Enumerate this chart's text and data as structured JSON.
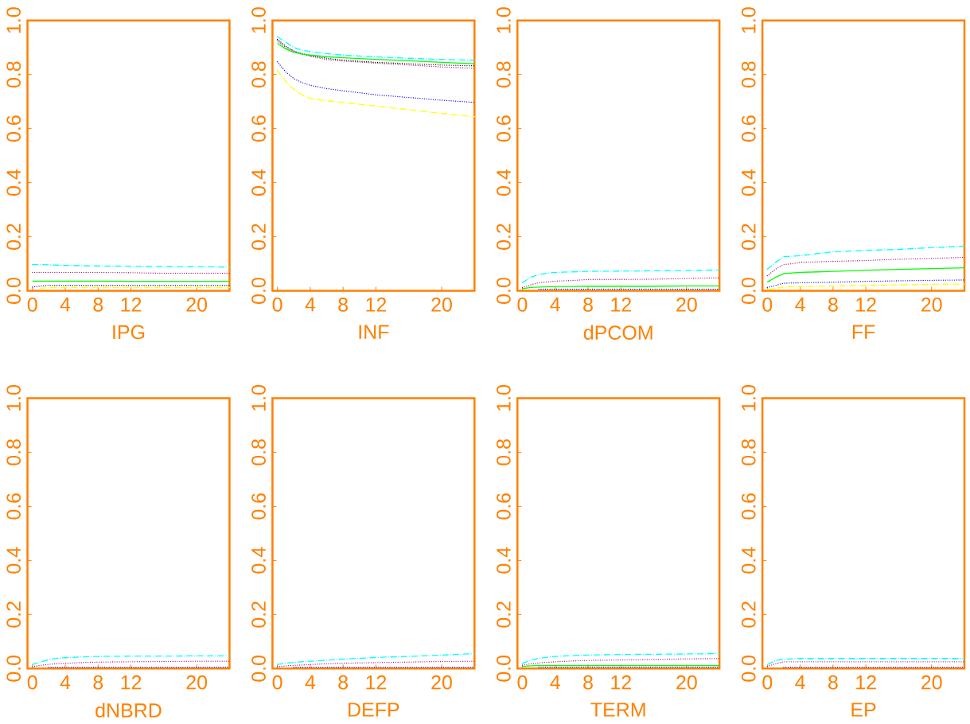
{
  "chart_data": [
    {
      "type": "line",
      "xlabel": "IPG",
      "x": [
        0,
        1,
        2,
        3,
        4,
        6,
        8,
        12,
        16,
        20,
        24
      ],
      "xlim": [
        -0.6,
        24
      ],
      "ylim": [
        0,
        1
      ],
      "xticks": [
        0,
        4,
        8,
        12,
        20
      ],
      "yticks": [
        {
          "value": 0,
          "label": "0.0"
        },
        {
          "value": 0.2,
          "label": "0.2"
        },
        {
          "value": 0.4,
          "label": "0.4"
        },
        {
          "value": 0.6,
          "label": "0.6"
        },
        {
          "value": 0.8,
          "label": "0.8"
        },
        {
          "value": 1,
          "label": "1.0"
        }
      ],
      "series": [
        {
          "color": "#00ffff",
          "line_style": "dashdot",
          "values": [
            0.097,
            0.097,
            0.096,
            0.095,
            0.094,
            0.093,
            0.092,
            0.091,
            0.09,
            0.089,
            0.088
          ]
        },
        {
          "color": "#b0107f",
          "line_style": "dotted",
          "values": [
            0.068,
            0.068,
            0.068,
            0.068,
            0.068,
            0.068,
            0.068,
            0.067,
            0.065,
            0.065,
            0.065
          ]
        },
        {
          "color": "#00ff00",
          "line_style": "solid",
          "values": [
            0.036,
            0.036,
            0.036,
            0.036,
            0.036,
            0.036,
            0.036,
            0.035,
            0.035,
            0.035,
            0.035
          ]
        },
        {
          "color": "#0000ff",
          "line_style": "dotted",
          "values": [
            0.014,
            0.018,
            0.02,
            0.02,
            0.02,
            0.02,
            0.02,
            0.02,
            0.02,
            0.02,
            0.02
          ]
        },
        {
          "color": "#ffff00",
          "line_style": "dashdot",
          "values": [
            null,
            0.01,
            0.011,
            0.012,
            0.012,
            0.012,
            0.012,
            0.012,
            0.012,
            0.012,
            0.012
          ]
        }
      ]
    },
    {
      "type": "line",
      "xlabel": "INF",
      "x": [
        0,
        1,
        2,
        3,
        4,
        6,
        8,
        12,
        16,
        20,
        24
      ],
      "xlim": [
        -0.6,
        24
      ],
      "ylim": [
        0,
        1
      ],
      "xticks": [
        0,
        4,
        8,
        12,
        20
      ],
      "yticks": [
        {
          "value": 0,
          "label": "0.0"
        },
        {
          "value": 0.2,
          "label": "0.2"
        },
        {
          "value": 0.4,
          "label": "0.4"
        },
        {
          "value": 0.6,
          "label": "0.6"
        },
        {
          "value": 0.8,
          "label": "0.8"
        },
        {
          "value": 1,
          "label": "1.0"
        }
      ],
      "series": [
        {
          "color": "#00ffff",
          "line_style": "dashdot",
          "values": [
            0.94,
            0.92,
            0.9,
            0.89,
            0.885,
            0.877,
            0.872,
            0.865,
            0.86,
            0.856,
            0.853
          ]
        },
        {
          "color": "#b0107f",
          "line_style": "dotted",
          "values": [
            0.925,
            0.9,
            0.885,
            0.875,
            0.868,
            0.855,
            0.85,
            0.842,
            0.835,
            0.828,
            0.823
          ]
        },
        {
          "color": "#000000",
          "line_style": "dotted",
          "values": [
            0.93,
            0.905,
            0.887,
            0.877,
            0.87,
            0.86,
            0.853,
            0.845,
            0.84,
            0.835,
            0.832
          ]
        },
        {
          "color": "#00ff00",
          "line_style": "solid",
          "values": [
            0.915,
            0.895,
            0.882,
            0.876,
            0.872,
            0.866,
            0.862,
            0.856,
            0.851,
            0.845,
            0.84
          ]
        },
        {
          "color": "#0000ff",
          "line_style": "dotted",
          "values": [
            0.847,
            0.81,
            0.785,
            0.77,
            0.76,
            0.748,
            0.74,
            0.725,
            0.715,
            0.705,
            0.697
          ]
        },
        {
          "color": "#ffff00",
          "line_style": "dashdot",
          "values": [
            0.815,
            0.775,
            0.745,
            0.725,
            0.712,
            0.703,
            0.697,
            0.683,
            0.67,
            0.656,
            0.644
          ]
        }
      ]
    },
    {
      "type": "line",
      "xlabel": "dPCOM",
      "x": [
        0,
        1,
        2,
        3,
        4,
        6,
        8,
        12,
        16,
        20,
        24
      ],
      "xlim": [
        -0.6,
        24
      ],
      "ylim": [
        0,
        1
      ],
      "xticks": [
        0,
        4,
        8,
        12,
        20
      ],
      "yticks": [
        {
          "value": 0,
          "label": "0.0"
        },
        {
          "value": 0.2,
          "label": "0.2"
        },
        {
          "value": 0.4,
          "label": "0.4"
        },
        {
          "value": 0.6,
          "label": "0.6"
        },
        {
          "value": 0.8,
          "label": "0.8"
        },
        {
          "value": 1,
          "label": "1.0"
        }
      ],
      "series": [
        {
          "color": "#00ffff",
          "line_style": "dashdot",
          "values": [
            0.03,
            0.05,
            0.06,
            0.065,
            0.068,
            0.07,
            0.072,
            0.073,
            0.074,
            0.075,
            0.077
          ]
        },
        {
          "color": "#b0107f",
          "line_style": "dotted",
          "values": [
            0.012,
            0.022,
            0.03,
            0.033,
            0.036,
            0.038,
            0.042,
            0.042,
            0.043,
            0.046,
            0.048
          ]
        },
        {
          "color": "#00ff00",
          "line_style": "solid",
          "values": [
            0.008,
            0.012,
            0.014,
            0.015,
            0.016,
            0.016,
            0.017,
            0.017,
            0.017,
            0.018,
            0.018
          ]
        },
        {
          "color": "#0000ff",
          "line_style": "dotted",
          "values": [
            null,
            null,
            0.006,
            0.006,
            0.006,
            0.006,
            0.006,
            0.006,
            0.006,
            0.006,
            0.006
          ]
        }
      ]
    },
    {
      "type": "line",
      "xlabel": "FF",
      "x": [
        0,
        1,
        2,
        3,
        4,
        6,
        8,
        12,
        16,
        20,
        24
      ],
      "xlim": [
        -0.6,
        24
      ],
      "ylim": [
        0,
        1
      ],
      "xticks": [
        0,
        4,
        8,
        12,
        20
      ],
      "yticks": [
        {
          "value": 0,
          "label": "0.0"
        },
        {
          "value": 0.2,
          "label": "0.2"
        },
        {
          "value": 0.4,
          "label": "0.4"
        },
        {
          "value": 0.6,
          "label": "0.6"
        },
        {
          "value": 0.8,
          "label": "0.8"
        },
        {
          "value": 1,
          "label": "1.0"
        }
      ],
      "series": [
        {
          "color": "#00ffff",
          "line_style": "dashdot",
          "values": [
            0.08,
            0.105,
            0.126,
            0.128,
            0.13,
            0.137,
            0.144,
            0.15,
            0.153,
            0.16,
            0.165
          ]
        },
        {
          "color": "#b0107f",
          "line_style": "dotted",
          "values": [
            0.056,
            0.08,
            0.097,
            0.1,
            0.106,
            0.107,
            0.109,
            0.112,
            0.117,
            0.12,
            0.124
          ]
        },
        {
          "color": "#00ff00",
          "line_style": "solid",
          "values": [
            0.032,
            0.05,
            0.064,
            0.066,
            0.068,
            0.07,
            0.072,
            0.076,
            0.079,
            0.082,
            0.085
          ]
        },
        {
          "color": "#0000ff",
          "line_style": "dotted",
          "values": [
            0.012,
            0.02,
            0.028,
            0.029,
            0.03,
            0.031,
            0.032,
            0.035,
            0.037,
            0.039,
            0.04
          ]
        },
        {
          "color": "#ffff00",
          "line_style": "dashdot",
          "values": [
            0.005,
            0.009,
            0.014,
            0.015,
            0.016,
            0.017,
            0.018,
            0.02,
            0.022,
            0.024,
            0.025
          ]
        }
      ]
    },
    {
      "type": "line",
      "xlabel": "dNBRD",
      "x": [
        0,
        1,
        2,
        3,
        4,
        6,
        8,
        12,
        16,
        20,
        24
      ],
      "xlim": [
        -0.6,
        24
      ],
      "ylim": [
        0,
        1
      ],
      "xticks": [
        0,
        4,
        8,
        12,
        20
      ],
      "yticks": [
        {
          "value": 0,
          "label": "0.0"
        },
        {
          "value": 0.2,
          "label": "0.2"
        },
        {
          "value": 0.4,
          "label": "0.4"
        },
        {
          "value": 0.6,
          "label": "0.6"
        },
        {
          "value": 0.8,
          "label": "0.8"
        },
        {
          "value": 1,
          "label": "1.0"
        }
      ],
      "series": [
        {
          "color": "#00ffff",
          "line_style": "dashdot",
          "values": [
            0.015,
            0.025,
            0.033,
            0.038,
            0.04,
            0.043,
            0.045,
            0.046,
            0.046,
            0.047,
            0.047
          ]
        },
        {
          "color": "#b0107f",
          "line_style": "dotted",
          "values": [
            0.007,
            0.012,
            0.016,
            0.018,
            0.02,
            0.022,
            0.024,
            0.025,
            0.026,
            0.027,
            0.027
          ]
        },
        {
          "color": "#0000ff",
          "line_style": "dotted",
          "values": [
            null,
            null,
            0.005,
            0.005,
            0.005,
            0.005,
            0.005,
            0.005,
            0.005,
            0.005,
            0.005
          ]
        }
      ]
    },
    {
      "type": "line",
      "xlabel": "DEFP",
      "x": [
        0,
        1,
        2,
        3,
        4,
        6,
        8,
        12,
        16,
        20,
        24
      ],
      "xlim": [
        -0.6,
        24
      ],
      "ylim": [
        0,
        1
      ],
      "xticks": [
        0,
        4,
        8,
        12,
        20
      ],
      "yticks": [
        {
          "value": 0,
          "label": "0.0"
        },
        {
          "value": 0.2,
          "label": "0.2"
        },
        {
          "value": 0.4,
          "label": "0.4"
        },
        {
          "value": 0.6,
          "label": "0.6"
        },
        {
          "value": 0.8,
          "label": "0.8"
        },
        {
          "value": 1,
          "label": "1.0"
        }
      ],
      "series": [
        {
          "color": "#00ffff",
          "line_style": "dashdot",
          "values": [
            0.015,
            0.02,
            0.023,
            0.025,
            0.027,
            0.031,
            0.035,
            0.041,
            0.045,
            0.05,
            0.055
          ]
        },
        {
          "color": "#b0107f",
          "line_style": "dotted",
          "values": [
            0.007,
            0.01,
            0.012,
            0.013,
            0.015,
            0.018,
            0.02,
            0.022,
            0.024,
            0.026,
            0.027
          ]
        },
        {
          "color": "#0000ff",
          "line_style": "dotted",
          "values": [
            null,
            null,
            0.005,
            0.005,
            0.005,
            0.005,
            0.005,
            0.005,
            0.005,
            0.005,
            0.005
          ]
        }
      ]
    },
    {
      "type": "line",
      "xlabel": "TERM",
      "x": [
        0,
        1,
        2,
        3,
        4,
        6,
        8,
        12,
        16,
        20,
        24
      ],
      "xlim": [
        -0.6,
        24
      ],
      "ylim": [
        0,
        1
      ],
      "xticks": [
        0,
        4,
        8,
        12,
        20
      ],
      "yticks": [
        {
          "value": 0,
          "label": "0.0"
        },
        {
          "value": 0.2,
          "label": "0.2"
        },
        {
          "value": 0.4,
          "label": "0.4"
        },
        {
          "value": 0.6,
          "label": "0.6"
        },
        {
          "value": 0.8,
          "label": "0.8"
        },
        {
          "value": 1,
          "label": "1.0"
        }
      ],
      "series": [
        {
          "color": "#00ffff",
          "line_style": "dashdot",
          "values": [
            0.02,
            0.03,
            0.038,
            0.042,
            0.045,
            0.048,
            0.05,
            0.052,
            0.053,
            0.054,
            0.055
          ]
        },
        {
          "color": "#b0107f",
          "line_style": "dotted",
          "values": [
            0.012,
            0.018,
            0.021,
            0.023,
            0.025,
            0.028,
            0.03,
            0.032,
            0.034,
            0.036,
            0.037
          ]
        },
        {
          "color": "#00ff00",
          "line_style": "solid",
          "values": [
            0.008,
            0.01,
            0.011,
            0.011,
            0.011,
            0.011,
            0.011,
            0.011,
            0.011,
            0.011,
            0.011
          ]
        },
        {
          "color": "#0000ff",
          "line_style": "dotted",
          "values": [
            null,
            null,
            0.005,
            0.005,
            0.005,
            0.005,
            0.005,
            0.005,
            0.005,
            0.005,
            0.005
          ]
        }
      ]
    },
    {
      "type": "line",
      "xlabel": "EP",
      "x": [
        0,
        1,
        2,
        3,
        4,
        6,
        8,
        12,
        16,
        20,
        24
      ],
      "xlim": [
        -0.6,
        24
      ],
      "ylim": [
        0,
        1
      ],
      "xticks": [
        0,
        4,
        8,
        12,
        20
      ],
      "yticks": [
        {
          "value": 0,
          "label": "0.0"
        },
        {
          "value": 0.2,
          "label": "0.2"
        },
        {
          "value": 0.4,
          "label": "0.4"
        },
        {
          "value": 0.6,
          "label": "0.6"
        },
        {
          "value": 0.8,
          "label": "0.8"
        },
        {
          "value": 1,
          "label": "1.0"
        }
      ],
      "series": [
        {
          "color": "#00ffff",
          "line_style": "dashdot",
          "values": [
            0.015,
            0.03,
            0.035,
            0.036,
            0.037,
            0.037,
            0.037,
            0.037,
            0.037,
            0.037,
            0.037
          ]
        },
        {
          "color": "#b0107f",
          "line_style": "dotted",
          "values": [
            0.008,
            0.018,
            0.025,
            0.025,
            0.025,
            0.025,
            0.025,
            0.025,
            0.025,
            0.025,
            0.025
          ]
        },
        {
          "color": "#0000ff",
          "line_style": "dotted",
          "values": [
            null,
            null,
            0.005,
            0.005,
            0.005,
            0.005,
            0.005,
            0.005,
            0.005,
            0.005,
            0.005
          ]
        }
      ]
    }
  ]
}
